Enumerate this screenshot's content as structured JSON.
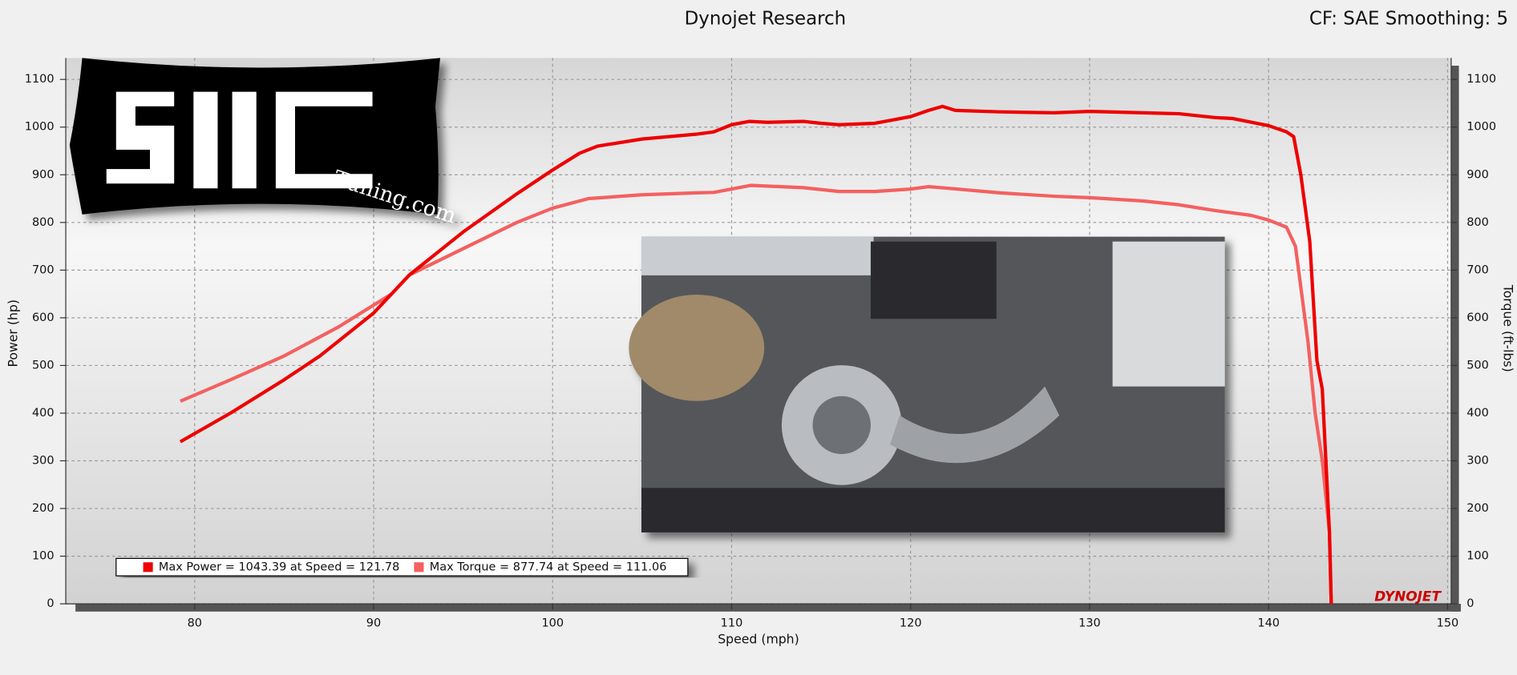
{
  "chart_data": {
    "type": "line",
    "title": "Dynojet Research",
    "subtitle": "CF: SAE Smoothing: 5",
    "x_label": "Speed (mph)",
    "y_label": "Power (hp)",
    "y2_label": "Torque (ft-lbs)",
    "logo_text": "Tuning.com",
    "watermark": "DYNOJET",
    "xlim": [
      72.8,
      150.2
    ],
    "xticks": [
      80,
      90,
      100,
      110,
      120,
      130,
      140,
      150
    ],
    "ylim": [
      0,
      1145
    ],
    "yticks": [
      0,
      100,
      200,
      300,
      400,
      500,
      600,
      700,
      800,
      900,
      1000,
      1100
    ],
    "y2lim": [
      0,
      1145
    ],
    "y2ticks": [
      0,
      100,
      200,
      300,
      400,
      500,
      600,
      700,
      800,
      900,
      1000,
      1100
    ],
    "grid": true,
    "series": [
      {
        "name": "Max Power = 1043.39 at Speed = 121.78",
        "color": "#ee0000",
        "x": [
          79.2,
          82,
          85,
          87,
          90,
          92,
          95,
          98,
          100,
          101.5,
          102.5,
          105,
          108,
          109,
          110,
          111,
          112,
          114,
          115,
          116,
          118,
          119,
          120,
          121,
          121.78,
          122.5,
          125,
          128,
          130,
          133,
          135,
          137,
          138,
          140,
          141,
          141.4,
          141.8,
          142.3,
          142.7,
          143,
          143.2,
          143.4,
          143.5
        ],
        "values": [
          340,
          400,
          470,
          520,
          610,
          690,
          780,
          860,
          910,
          945,
          960,
          975,
          985,
          990,
          1005,
          1012,
          1010,
          1012,
          1008,
          1005,
          1008,
          1015,
          1022,
          1035,
          1043.39,
          1035,
          1032,
          1030,
          1033,
          1030,
          1028,
          1020,
          1018,
          1003,
          990,
          980,
          900,
          760,
          510,
          450,
          300,
          150,
          0
        ]
      },
      {
        "name": "Max Torque = 877.74 at Speed = 111.06",
        "color": "#f46060",
        "axis": "y2",
        "x": [
          79.2,
          82,
          85,
          88,
          91,
          92,
          95,
          98,
          100,
          102,
          105,
          108,
          109,
          111.06,
          114,
          116,
          118,
          120,
          121,
          122,
          125,
          128,
          130,
          133,
          135,
          137,
          139,
          140,
          141,
          141.5,
          142.2,
          142.6,
          143,
          143.4,
          143.5
        ],
        "values": [
          425,
          470,
          520,
          580,
          650,
          690,
          745,
          800,
          830,
          850,
          858,
          862,
          863,
          877.74,
          873,
          865,
          865,
          870,
          875,
          872,
          862,
          855,
          852,
          845,
          837,
          825,
          815,
          805,
          790,
          750,
          550,
          400,
          300,
          150,
          0
        ]
      }
    ]
  }
}
